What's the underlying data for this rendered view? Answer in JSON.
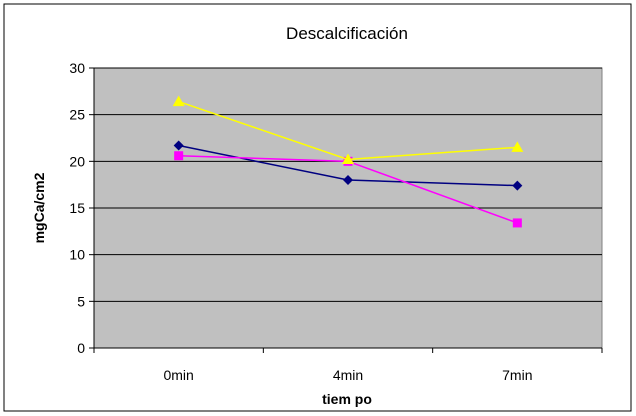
{
  "chart_data": {
    "type": "line",
    "title": "Descalcificación",
    "xlabel": "tiem po",
    "ylabel": "mgCa/cm2",
    "categories": [
      "0min",
      "4min",
      "7min"
    ],
    "ylim": [
      0,
      30
    ],
    "yticks": [
      0,
      5,
      10,
      15,
      20,
      25,
      30
    ],
    "grid": true,
    "plot_background": "#c0c0c0",
    "series": [
      {
        "color": "#000080",
        "marker": "diamond",
        "values": [
          21.7,
          18.0,
          17.4
        ]
      },
      {
        "color": "#ff00ff",
        "marker": "square",
        "values": [
          20.6,
          20.0,
          13.4
        ]
      },
      {
        "color": "#ffff00",
        "marker": "triangle",
        "values": [
          26.4,
          20.2,
          21.5
        ]
      }
    ]
  }
}
